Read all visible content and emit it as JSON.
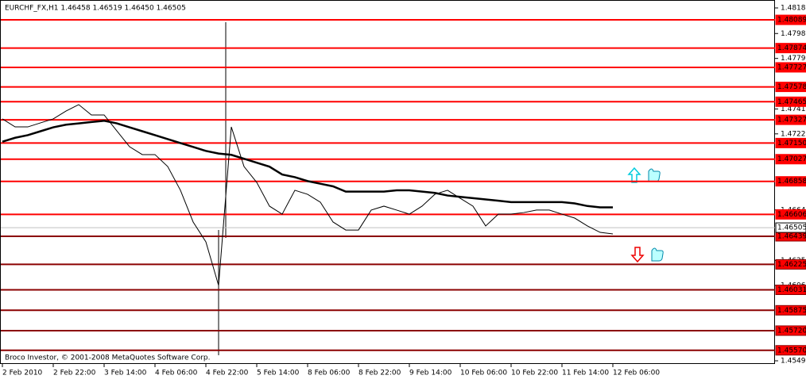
{
  "chart_data": {
    "type": "line",
    "title": "EURCHF_FX,H1  1.46458 1.46519 1.46450 1.46505",
    "footer": "Broco Investor, © 2001-2008 MetaQuotes Software Corp.",
    "categories": [
      "2 Feb 2010",
      null,
      null,
      null,
      "2 Feb 22:00",
      null,
      null,
      null,
      "3 Feb 14:00",
      null,
      null,
      null,
      "4 Feb 06:00",
      null,
      null,
      null,
      "4 Feb 22:00",
      null,
      null,
      null,
      "5 Feb 14:00",
      null,
      null,
      null,
      "8 Feb 06:00",
      null,
      null,
      null,
      "8 Feb 22:00",
      null,
      null,
      null,
      "9 Feb 14:00",
      null,
      null,
      null,
      "10 Feb 06:00",
      null,
      null,
      null,
      "10 Feb 22:00",
      null,
      null,
      null,
      "11 Feb 14:00",
      null,
      null,
      null,
      "12 Feb 06:00"
    ],
    "series": [
      {
        "color": "#000000",
        "values": [
          1.47334,
          1.47273,
          1.47273,
          1.47304,
          1.47334,
          1.47394,
          1.47443,
          1.47364,
          1.47364,
          1.47243,
          1.47122,
          1.47062,
          1.47062,
          1.46971,
          1.4679,
          1.46548,
          1.46397,
          1.46064,
          1.47273,
          1.46971,
          1.4685,
          1.46669,
          1.46608,
          1.4679,
          1.46759,
          1.46699,
          1.46548,
          1.46487,
          1.46487,
          1.46639,
          1.46669,
          1.46639,
          1.46608,
          1.46669,
          1.46759,
          1.4679,
          1.46729,
          1.46669,
          1.46518,
          1.46608,
          1.46608,
          1.4662,
          1.46639,
          1.46639,
          1.46608,
          1.46578,
          1.46518,
          1.46469,
          1.46457
        ]
      },
      {
        "color": "#000000",
        "values": [
          1.4716,
          1.4719,
          1.4721,
          1.4724,
          1.4727,
          1.4729,
          1.473,
          1.4731,
          1.4732,
          1.473,
          1.4727,
          1.4724,
          1.4721,
          1.4718,
          1.4715,
          1.4712,
          1.4709,
          1.4707,
          1.4706,
          1.4703,
          1.47,
          1.4697,
          1.4691,
          1.4689,
          1.4686,
          1.4684,
          1.4682,
          1.4678,
          1.4678,
          1.4678,
          1.4678,
          1.4679,
          1.4679,
          1.4678,
          1.4677,
          1.4675,
          1.4674,
          1.4673,
          1.4672,
          1.4671,
          1.467,
          1.467,
          1.467,
          1.467,
          1.467,
          1.4669,
          1.4667,
          1.4666,
          1.4666
        ]
      }
    ],
    "ylim": [
      1.4549,
      1.4818
    ],
    "yticks": [
      {
        "value": 1.4818,
        "label": "1.48180"
      },
      1.47985,
      1.47795,
      {
        "value": 1.4741,
        "label": "1.47410"
      },
      {
        "value": 1.4722,
        "label": "1.47220"
      },
      {
        "value": 1.4664,
        "label": "1.46640"
      },
      1.46255,
      1.46065,
      {
        "value": 1.4549,
        "label": "1.45490"
      }
    ],
    "current_price": 1.46505,
    "levels": [
      1.48089,
      1.47874,
      1.47727,
      1.47578,
      1.47465,
      1.47327,
      {
        "value": 1.4715,
        "label": "1.47150"
      },
      1.47027,
      1.46858,
      1.46606,
      1.46439,
      1.46225,
      1.46031,
      1.45875,
      {
        "value": 1.4572,
        "label": "1.45720"
      },
      {
        "value": 1.4557,
        "label": "1.45570"
      }
    ],
    "level_colors": [
      "#ff0000",
      "#ff0000",
      "#ff0000",
      "#ff0000",
      "#ff0000",
      "#ff0000",
      "#ff0000",
      "#ff0000",
      "#ff0000",
      "#ff0000",
      "#8b0000",
      "#8b0000",
      "#8b0000",
      "#8b0000",
      "#8b0000",
      "#8b0000"
    ]
  }
}
